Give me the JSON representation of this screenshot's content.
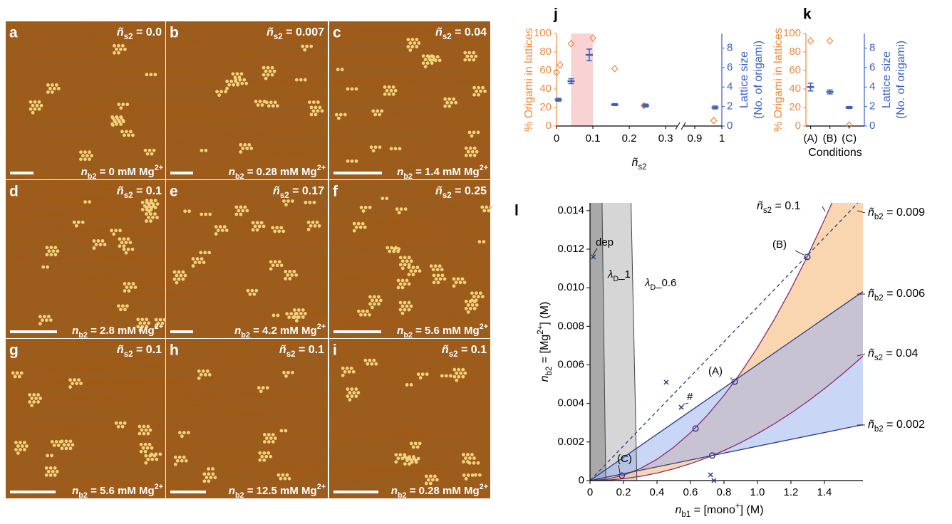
{
  "afm_panels": [
    {
      "letter": "a",
      "s2": {
        "main": "ñ",
        "sub": "s2",
        "tail": " = 0.0"
      },
      "b2": {
        "main": "n",
        "sub": "b2",
        "tail": " = 0 mM Mg",
        "sup": "2+"
      }
    },
    {
      "letter": "b",
      "s2": {
        "main": "ñ",
        "sub": "s2",
        "tail": " = 0.007"
      },
      "b2": {
        "main": "n",
        "sub": "b2",
        "tail": " = 0.28 mM Mg",
        "sup": "2+"
      }
    },
    {
      "letter": "c",
      "s2": {
        "main": "ñ",
        "sub": "s2",
        "tail": " = 0.04"
      },
      "b2": {
        "main": "n",
        "sub": "b2",
        "tail": " = 1.4 mM Mg",
        "sup": "2+"
      }
    },
    {
      "letter": "d",
      "s2": {
        "main": "ñ",
        "sub": "s2",
        "tail": " = 0.1"
      },
      "b2": {
        "main": "n",
        "sub": "b2",
        "tail": " = 2.8 mM Mg",
        "sup": "2+"
      }
    },
    {
      "letter": "e",
      "s2": {
        "main": "ñ",
        "sub": "s2",
        "tail": " = 0.17"
      },
      "b2": {
        "main": "n",
        "sub": "b2",
        "tail": " = 4.2 mM Mg",
        "sup": "2+"
      }
    },
    {
      "letter": "f",
      "s2": {
        "main": "ñ",
        "sub": "s2",
        "tail": " = 0.25"
      },
      "b2": {
        "main": "n",
        "sub": "b2",
        "tail": " = 5.6 mM Mg",
        "sup": "2+"
      }
    },
    {
      "letter": "g",
      "s2": {
        "main": "ñ",
        "sub": "s2",
        "tail": " = 0.1"
      },
      "b2": {
        "main": "n",
        "sub": "b2",
        "tail": " = 5.6 mM Mg",
        "sup": "2+"
      }
    },
    {
      "letter": "h",
      "s2": {
        "main": "ñ",
        "sub": "s2",
        "tail": " = 0.1"
      },
      "b2": {
        "main": "n",
        "sub": "b2",
        "tail": " = 12.5 mM Mg",
        "sup": "2+"
      }
    },
    {
      "letter": "i",
      "s2": {
        "main": "ñ",
        "sub": "s2",
        "tail": " = 0.1"
      },
      "b2": {
        "main": "n",
        "sub": "b2",
        "tail": " = 0.28 mM Mg",
        "sup": "2+"
      }
    }
  ],
  "chart_data": [
    {
      "type": "scatter",
      "panel": "j",
      "ylabel": "% Origami in lattices",
      "y2label": [
        "Lattice size",
        "(No. of origami)"
      ],
      "xlabel": {
        "main": "ñ",
        "sub": "s2"
      },
      "xlim": [
        0,
        1
      ],
      "x_break": [
        0.3,
        0.9
      ],
      "xticks": [
        0,
        0.1,
        0.2,
        0.3,
        0.9,
        1
      ],
      "ylim": [
        0,
        100
      ],
      "yticks": [
        0,
        20,
        40,
        60,
        80,
        100
      ],
      "y2lim": [
        0,
        9.5
      ],
      "y2ticks": [
        0,
        2,
        4,
        6,
        8
      ],
      "highlight": [
        0.04,
        0.1
      ],
      "highlight_color": "#f9d3d3",
      "series": [
        {
          "color": "#f0883a",
          "marker": "diamond",
          "x": [
            0,
            0.01,
            0.04,
            0.1,
            0.16,
            0.24,
            0.97
          ],
          "values": [
            58,
            66,
            89,
            95,
            62,
            22,
            6
          ]
        },
        {
          "color": "#3a5fc0",
          "marker": "errorbar",
          "axis": "y2",
          "x": [
            0.005,
            0.04,
            0.09,
            0.16,
            0.245,
            0.975
          ],
          "values": [
            2.7,
            4.6,
            7.3,
            2.2,
            2.1,
            1.9
          ],
          "errors": [
            0.15,
            0.25,
            0.6,
            0.1,
            0.15,
            0.15
          ]
        }
      ]
    },
    {
      "type": "scatter",
      "panel": "k",
      "ylabel": "% Origami in lattices",
      "y2label": [
        "Lattice size",
        "(No. of origami)"
      ],
      "xlabel": "Conditions",
      "categories": [
        "(A)",
        "(B)",
        "(C)"
      ],
      "ylim": [
        0,
        100
      ],
      "yticks": [
        0,
        20,
        40,
        60,
        80,
        100
      ],
      "y2lim": [
        0,
        9.5
      ],
      "y2ticks": [
        0,
        2,
        4,
        6,
        8
      ],
      "series": [
        {
          "color": "#f0883a",
          "marker": "diamond",
          "values": [
            92,
            92,
            1
          ]
        },
        {
          "color": "#3a5fc0",
          "marker": "errorbar",
          "axis": "y2",
          "values": [
            4.0,
            3.5,
            1.9
          ],
          "errors": [
            0.4,
            0.2,
            0.1
          ]
        }
      ]
    },
    {
      "type": "line",
      "panel": "l",
      "ylabel": {
        "main": "n",
        "sub": "b2",
        "tail": " = [Mg",
        "sup": "2+",
        "end": "] (M)"
      },
      "xlabel": {
        "main": "n",
        "sub": "b1",
        "tail": " = [mono",
        "sup": "+",
        "end": "] (M)"
      },
      "xlim": [
        0,
        1.63
      ],
      "ylim": [
        0,
        0.0144
      ],
      "xticks": [
        0,
        0.2,
        0.4,
        0.6,
        0.8,
        {
          "value": 1,
          "label": "1.0"
        },
        1.2,
        1.4
      ],
      "yticks": [
        0,
        0.002,
        0.004,
        0.006,
        0.008,
        {
          "value": 0.01,
          "label": "0.010"
        },
        0.012,
        0.014
      ],
      "series": [
        {
          "label": {
            "main": "ñ",
            "sub": "s2",
            "tail": " = 0.1"
          },
          "color": "#8a2a6e",
          "fill": "#f7c58f",
          "x": [
            0,
            0.1,
            0.2,
            0.3,
            0.4,
            0.5,
            0.6,
            0.7,
            0.8,
            0.9,
            1.0,
            1.1,
            1.2,
            1.3,
            1.4,
            1.445
          ],
          "values": [
            0,
            6.9e-05,
            0.000276,
            0.000621,
            0.001104,
            0.001725,
            0.002484,
            0.003381,
            0.004416,
            0.005589,
            0.0069,
            0.008349,
            0.009936,
            0.011661,
            0.013524,
            0.0144
          ]
        },
        {
          "label": {
            "main": "ñ",
            "sub": "b2",
            "tail": " = 0.009"
          },
          "color": "#2a3a8a",
          "dash": true,
          "x": [
            0,
            1.6
          ],
          "values": [
            0,
            0.0144
          ]
        },
        {
          "label": {
            "main": "ñ",
            "sub": "b2",
            "tail": " = 0.006"
          },
          "color": "#2a3a8a",
          "fill": "#9fb4ee",
          "x": [
            0,
            1.63
          ],
          "values": [
            0,
            0.0098
          ]
        },
        {
          "label": {
            "main": "ñ",
            "sub": "s2",
            "tail": " = 0.04"
          },
          "color": "#8a2a6e",
          "x": [
            0,
            0.1,
            0.2,
            0.3,
            0.4,
            0.5,
            0.6,
            0.7,
            0.8,
            0.9,
            1.0,
            1.1,
            1.2,
            1.3,
            1.4,
            1.5,
            1.6,
            1.63
          ],
          "values": [
            0,
            2.43e-05,
            9.72e-05,
            0.0002187,
            0.0003888,
            0.0006075,
            0.0008748,
            0.0011907,
            0.0015552,
            0.0019683,
            0.00243,
            0.0029403,
            0.0034992,
            0.0041067,
            0.0047628,
            0.0054675,
            0.0062208,
            0.006456
          ]
        },
        {
          "label": {
            "main": "ñ",
            "sub": "b2",
            "tail": " = 0.002"
          },
          "color": "#2a3a8a",
          "x": [
            0,
            1.63
          ],
          "values": [
            0,
            0.0029
          ]
        }
      ],
      "lambda_lines": [
        {
          "label": {
            "main": "λ",
            "sub": "D",
            "tail": "_1"
          },
          "color": "#444444",
          "fill": "#a9a9a9",
          "x": [
            0.094,
            0.072
          ],
          "values": [
            0,
            0.0144
          ]
        },
        {
          "label": {
            "main": "λ",
            "sub": "D",
            "tail": "_0.6"
          },
          "color": "#444444",
          "fill": "#d6d6d6",
          "x": [
            0.28,
            0.245
          ],
          "values": [
            0,
            0.0144
          ]
        }
      ],
      "points": [
        {
          "marker": "circle",
          "color": "#2a3a8a",
          "x": [
            0.864,
            1.298,
            0.63,
            0.73,
            0.19
          ],
          "values": [
            0.00513,
            0.0116,
            0.0027,
            0.0013,
            0.00026
          ]
        },
        {
          "marker": "cross",
          "color": "#2a3a8a",
          "x": [
            0.02,
            0.455,
            0.545,
            0.72,
            0.74
          ],
          "values": [
            0.0116,
            0.0051,
            0.0038,
            0.0003,
            0
          ]
        }
      ],
      "annotations": [
        "dep",
        "#",
        "(A)",
        "(B)",
        "(C)"
      ]
    }
  ]
}
